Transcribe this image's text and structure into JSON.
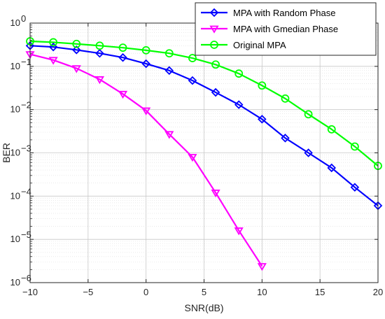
{
  "chart_data": {
    "type": "line",
    "title": "",
    "xlabel": "SNR(dB)",
    "ylabel": "BER",
    "xlim": [
      -10,
      20
    ],
    "ylim": [
      1e-06,
      1
    ],
    "yscale": "log",
    "grid": true,
    "legend_position": "top-right",
    "x_ticks": [
      {
        "value": -10,
        "label": "−10"
      },
      {
        "value": -5,
        "label": "−5"
      },
      {
        "value": 0,
        "label": "0"
      },
      {
        "value": 5,
        "label": "5"
      },
      {
        "value": 10,
        "label": "10"
      },
      {
        "value": 15,
        "label": "15"
      },
      {
        "value": 20,
        "label": "20"
      }
    ],
    "y_ticks": [
      {
        "value": 1,
        "base": "10",
        "exp": "0"
      },
      {
        "value": 0.1,
        "base": "10",
        "exp": "−1"
      },
      {
        "value": 0.01,
        "base": "10",
        "exp": "−2"
      },
      {
        "value": 0.001,
        "base": "10",
        "exp": "−3"
      },
      {
        "value": 0.0001,
        "base": "10",
        "exp": "−4"
      },
      {
        "value": 1e-05,
        "base": "10",
        "exp": "−5"
      },
      {
        "value": 1e-06,
        "base": "10",
        "exp": "−6"
      }
    ],
    "series": [
      {
        "name": "MPA with Random Phase",
        "color": "#0000ff",
        "marker": "diamond",
        "x": [
          -10,
          -8,
          -6,
          -4,
          -2,
          0,
          2,
          4,
          6,
          8,
          10,
          12,
          14,
          16,
          18,
          20
        ],
        "y": [
          0.3,
          0.28,
          0.24,
          0.2,
          0.16,
          0.115,
          0.08,
          0.047,
          0.025,
          0.013,
          0.006,
          0.0022,
          0.001,
          0.00045,
          0.00016,
          6e-05
        ]
      },
      {
        "name": "MPA with Gmedian Phase",
        "color": "#ff00ff",
        "marker": "triangle-down",
        "x": [
          -10,
          -8,
          -6,
          -4,
          -2,
          0,
          2,
          4,
          6,
          8,
          10
        ],
        "y": [
          0.19,
          0.14,
          0.09,
          0.05,
          0.023,
          0.0095,
          0.0027,
          0.0008,
          0.00012,
          1.6e-05,
          2.4e-06
        ]
      },
      {
        "name": "Original MPA",
        "color": "#00ff00",
        "marker": "circle",
        "x": [
          -10,
          -8,
          -6,
          -4,
          -2,
          0,
          2,
          4,
          6,
          8,
          10,
          12,
          14,
          16,
          18,
          20
        ],
        "y": [
          0.38,
          0.36,
          0.33,
          0.3,
          0.27,
          0.235,
          0.2,
          0.155,
          0.11,
          0.068,
          0.036,
          0.018,
          0.0078,
          0.0035,
          0.0014,
          0.0005
        ]
      }
    ]
  }
}
